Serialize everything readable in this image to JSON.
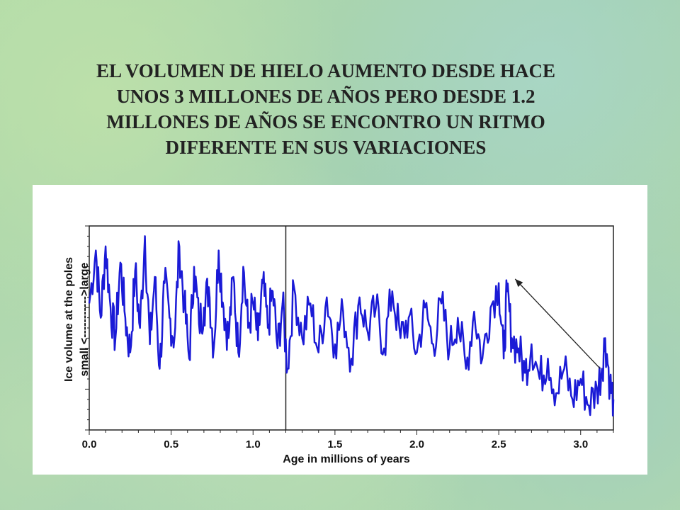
{
  "slide": {
    "title_lines": [
      "EL VOLUMEN DE HIELO AUMENTO DESDE HACE",
      "UNOS 3 MILLONES DE AÑOS PERO DESDE 1.2",
      "MILLONES DE AÑOS SE ENCONTRO UN RITMO",
      "DIFERENTE EN SUS VARIACIONES"
    ]
  },
  "chart_data": {
    "type": "line",
    "title": "",
    "xlabel": "Age in millions of years",
    "ylabel": "Ice volume at the poles",
    "ylabel_low": "small <",
    "ylabel_arrow": "-----------",
    "ylabel_high": ">large",
    "xlim": [
      0.0,
      3.2
    ],
    "ylim": [
      0,
      1
    ],
    "x_ticks": [
      "0.0",
      "0.5",
      "1.0",
      "1.5",
      "2.0",
      "2.5",
      "3.0"
    ],
    "x_tick_values": [
      0.0,
      0.5,
      1.0,
      1.5,
      2.0,
      2.5,
      3.0
    ],
    "y_tick_labels_shown": false,
    "grid": false,
    "line_color": "#1a1ad6",
    "marker_line_at": 1.2,
    "series": [
      {
        "x": [
          0.0,
          0.04,
          0.07,
          0.1,
          0.13,
          0.16,
          0.19,
          0.22,
          0.25,
          0.28,
          0.31,
          0.34,
          0.37,
          0.4,
          0.43,
          0.46,
          0.49,
          0.52,
          0.55,
          0.58,
          0.61,
          0.64,
          0.67,
          0.7,
          0.73,
          0.76,
          0.79,
          0.82,
          0.85,
          0.88,
          0.91,
          0.94,
          0.97,
          1.0,
          1.03,
          1.06,
          1.09,
          1.12,
          1.15,
          1.18,
          1.21,
          1.25,
          1.3,
          1.35,
          1.4,
          1.45,
          1.5,
          1.55,
          1.6,
          1.65,
          1.7,
          1.75,
          1.8,
          1.85,
          1.9,
          1.95,
          2.0,
          2.05,
          2.1,
          2.15,
          2.2,
          2.25,
          2.3,
          2.35,
          2.4,
          2.45,
          2.5,
          2.53,
          2.55,
          2.58,
          2.62,
          2.66,
          2.7,
          2.75,
          2.8,
          2.85,
          2.9,
          2.95,
          3.0,
          3.05,
          3.1,
          3.13,
          3.15,
          3.18,
          3.2
        ],
        "y": [
          0.62,
          0.88,
          0.55,
          0.9,
          0.6,
          0.45,
          0.82,
          0.55,
          0.38,
          0.78,
          0.5,
          0.95,
          0.42,
          0.75,
          0.3,
          0.72,
          0.55,
          0.45,
          0.9,
          0.62,
          0.35,
          0.8,
          0.52,
          0.6,
          0.7,
          0.4,
          0.88,
          0.6,
          0.45,
          0.75,
          0.38,
          0.8,
          0.5,
          0.62,
          0.44,
          0.72,
          0.5,
          0.68,
          0.4,
          0.62,
          0.3,
          0.7,
          0.45,
          0.62,
          0.38,
          0.65,
          0.42,
          0.58,
          0.35,
          0.65,
          0.48,
          0.6,
          0.4,
          0.68,
          0.45,
          0.55,
          0.38,
          0.6,
          0.42,
          0.62,
          0.4,
          0.55,
          0.3,
          0.58,
          0.35,
          0.6,
          0.72,
          0.35,
          0.68,
          0.45,
          0.4,
          0.28,
          0.42,
          0.25,
          0.35,
          0.18,
          0.3,
          0.15,
          0.25,
          0.12,
          0.2,
          0.3,
          0.45,
          0.22,
          0.15
        ]
      }
    ],
    "annotation": {
      "type": "arrow",
      "from": [
        3.12,
        0.3
      ],
      "to": [
        2.6,
        0.74
      ]
    }
  }
}
